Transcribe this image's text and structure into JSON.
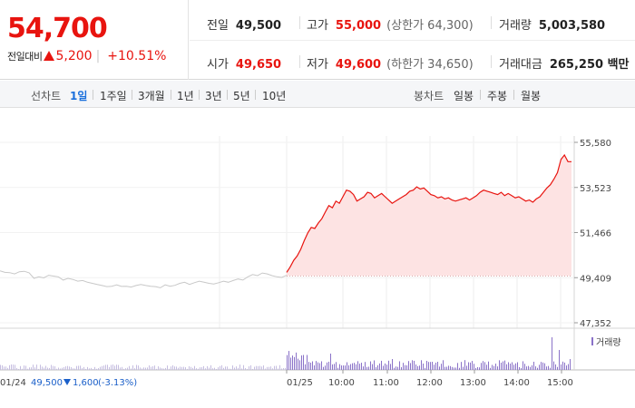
{
  "summary": {
    "price": "54,700",
    "change_label": "전일대비",
    "change_value": "5,200",
    "change_pct": "+10.51%"
  },
  "stats": {
    "prev_close": {
      "label": "전일",
      "value": "49,500"
    },
    "high": {
      "label": "고가",
      "value": "55,000",
      "sub": "(상한가 64,300)"
    },
    "volume": {
      "label": "거래량",
      "value": "5,003,580"
    },
    "open": {
      "label": "시가",
      "value": "49,650"
    },
    "low": {
      "label": "저가",
      "value": "49,600",
      "sub": "(하한가 34,650)"
    },
    "amount": {
      "label": "거래대금",
      "value": "265,250 백만"
    }
  },
  "tabs": {
    "line_label": "선차트",
    "line_tabs": [
      "1일",
      "1주일",
      "3개월",
      "1년",
      "3년",
      "5년",
      "10년"
    ],
    "candle_label": "봉차트",
    "candle_tabs": [
      "일봉",
      "주봉",
      "월봉"
    ],
    "active": "1일"
  },
  "chart_data": {
    "type": "line",
    "y_ticks": [
      "55,580",
      "53,523",
      "51,466",
      "49,409",
      "47,352"
    ],
    "ylim": [
      47352,
      55580
    ],
    "prev_close": 49500,
    "x_labels": [
      "01/24",
      "01/25",
      "10:00",
      "11:00",
      "12:00",
      "13:00",
      "14:00",
      "15:00"
    ],
    "prev_day_label": "01/24",
    "prev_day_close": "49,500",
    "prev_day_change": "1,600",
    "prev_day_pct": "(-3.13%)",
    "volume_legend": "거래량",
    "colors": {
      "today": "#e8140f",
      "today_fill": "#fde3e3",
      "prevday": "#c8c8c8",
      "volume": "#8a72c8",
      "prevday_down": "#1a5fc9"
    },
    "prevday_series": [
      49720,
      49650,
      49640,
      49580,
      49680,
      49700,
      49630,
      49380,
      49450,
      49400,
      49520,
      49480,
      49450,
      49300,
      49380,
      49330,
      49250,
      49280,
      49200,
      49150,
      49100,
      49050,
      49000,
      49020,
      49080,
      49010,
      49020,
      48980,
      49050,
      49100,
      49050,
      49020,
      49000,
      48950,
      49080,
      49020,
      49060,
      49150,
      49200,
      49100,
      49180,
      49250,
      49200,
      49150,
      49120,
      49180,
      49250,
      49200,
      49280,
      49350,
      49300,
      49450,
      49550,
      49500,
      49620,
      49580,
      49500,
      49450,
      49420,
      49520
    ],
    "today_series": [
      49650,
      49900,
      50200,
      50400,
      50700,
      51100,
      51450,
      51700,
      51650,
      51900,
      52100,
      52400,
      52700,
      52600,
      52900,
      52800,
      53100,
      53400,
      53350,
      53200,
      52900,
      53000,
      53100,
      53300,
      53250,
      53050,
      53150,
      53250,
      53100,
      52950,
      52800,
      52900,
      53000,
      53100,
      53200,
      53350,
      53400,
      53550,
      53450,
      53500,
      53350,
      53200,
      53150,
      53050,
      53100,
      53000,
      53050,
      52950,
      52900,
      52950,
      53000,
      53050,
      52950,
      53050,
      53150,
      53300,
      53400,
      53350,
      53300,
      53250,
      53200,
      53300,
      53150,
      53250,
      53150,
      53050,
      53100,
      53000,
      52900,
      52950,
      52850,
      53000,
      53100,
      53300,
      53500,
      53650,
      53900,
      54200,
      54800,
      55000,
      54700,
      54700
    ]
  }
}
